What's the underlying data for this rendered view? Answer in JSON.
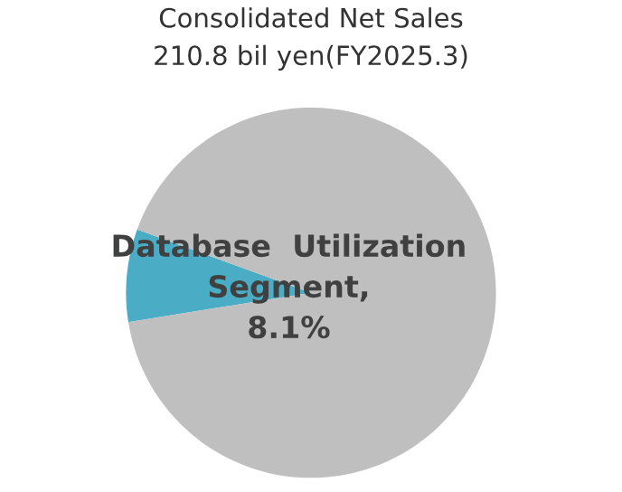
{
  "chart_data": {
    "type": "pie",
    "title": "Consolidated Net Sales\n210.8 bil yen(FY2025.3)",
    "categories": [
      null,
      null
    ],
    "values": [
      8.1,
      91.9
    ],
    "value_labels": [
      "Database  Utilization\nSegment,\n8.1%",
      null
    ],
    "colors": [
      "#4bacc6",
      "#bfbfbf"
    ]
  }
}
